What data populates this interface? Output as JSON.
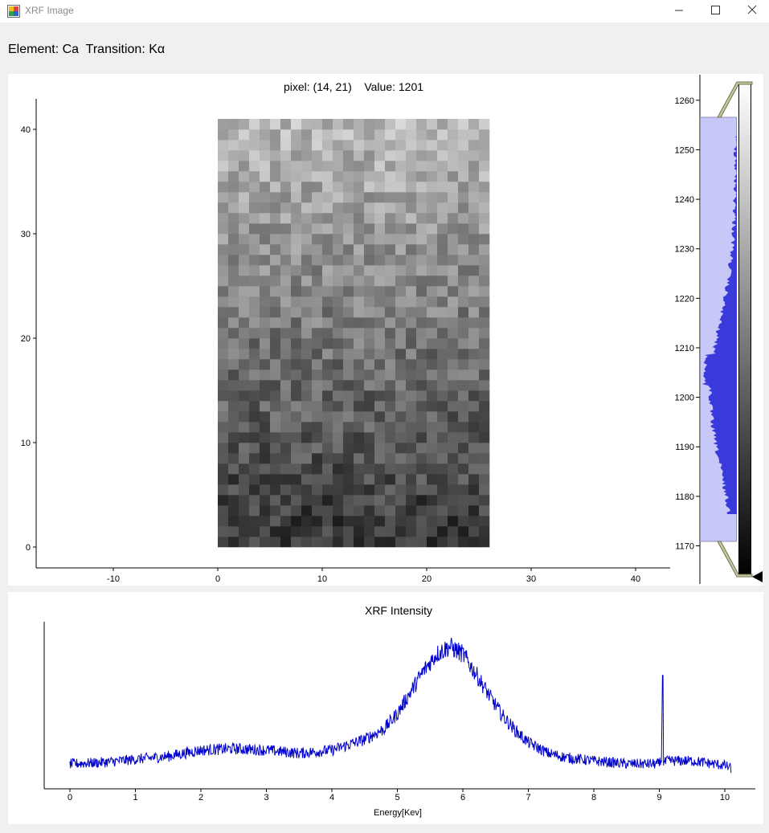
{
  "window": {
    "title": "XRF Image",
    "icon": "xrf-app-icon",
    "controls": [
      "minimize-icon",
      "maximize-icon",
      "close-icon"
    ]
  },
  "header": {
    "element_label": "Element: Ca",
    "transition_label": "Transition: Kα"
  },
  "image_view": {
    "pixel_label": "pixel: (14, 21)",
    "value_label": "Value: 1201",
    "x_ticks": [
      "-10",
      "0",
      "10",
      "20",
      "30",
      "40"
    ],
    "y_ticks": [
      "0",
      "10",
      "20",
      "30",
      "40"
    ],
    "grid_size": {
      "cols": 26,
      "rows": 41
    }
  },
  "colorbar": {
    "ticks": [
      "1170",
      "1180",
      "1190",
      "1200",
      "1210",
      "1220",
      "1230",
      "1240",
      "1250",
      "1260"
    ],
    "colormap": "grayscale",
    "region_color": "#c8c8f8",
    "histogram_color": "#3a3adc"
  },
  "chart_data": {
    "type": "line",
    "title": "XRF Intensity",
    "xlabel": "Energy[Kev]",
    "ylabel": "",
    "xlim": [
      -0.35,
      10.45
    ],
    "x_ticks": [
      "0",
      "1",
      "2",
      "3",
      "4",
      "5",
      "6",
      "7",
      "8",
      "9",
      "10"
    ],
    "series_color": "#0000cc",
    "series": [
      {
        "x": [
          0,
          0.5,
          1,
          1.5,
          2,
          2.5,
          3,
          3.5,
          4,
          4.5,
          4.8,
          5,
          5.2,
          5.4,
          5.6,
          5.8,
          6,
          6.2,
          6.4,
          6.6,
          6.8,
          7,
          7.3,
          7.6,
          8,
          8.5,
          9,
          9.05,
          9.1,
          9.5,
          10,
          10.1
        ],
        "y": [
          10,
          11,
          13,
          15,
          19,
          20,
          19,
          17,
          19,
          26,
          33,
          43,
          57,
          71,
          82,
          87,
          82,
          69,
          55,
          42,
          32,
          24,
          17,
          14,
          12,
          10,
          10,
          68,
          12,
          12,
          9,
          7
        ]
      }
    ]
  }
}
